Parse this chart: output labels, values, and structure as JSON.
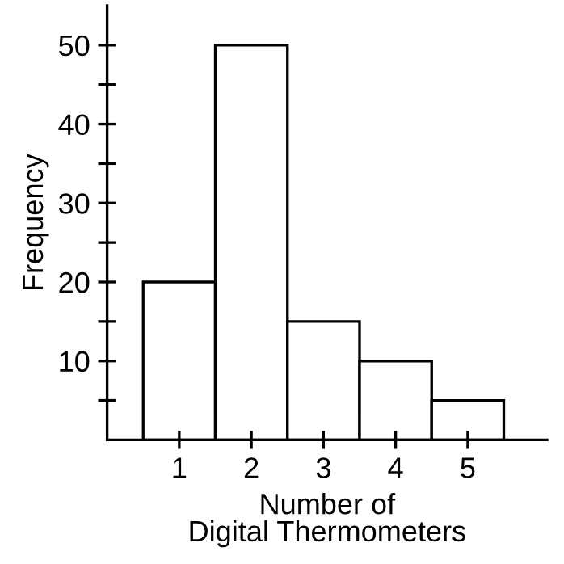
{
  "chart_data": {
    "type": "histogram",
    "xlabel": "Number of\nDigital Thermometers",
    "ylabel": "Frequency",
    "bins": [
      0.5,
      1.5,
      2.5,
      3.5,
      4.5,
      5.5
    ],
    "values": [
      20,
      50,
      15,
      10,
      5
    ],
    "color": "#ffffff",
    "xlim": [
      0,
      6.1
    ],
    "xticks": [
      1,
      2,
      3,
      4,
      5
    ],
    "ylim": [
      0,
      55
    ],
    "yticks": [
      {
        "value": 5,
        "label": null
      },
      10,
      {
        "value": 15,
        "label": null
      },
      20,
      {
        "value": 25,
        "label": null
      },
      30,
      {
        "value": 35,
        "label": null
      },
      40,
      {
        "value": 45,
        "label": null
      },
      50
    ],
    "grid": false
  }
}
